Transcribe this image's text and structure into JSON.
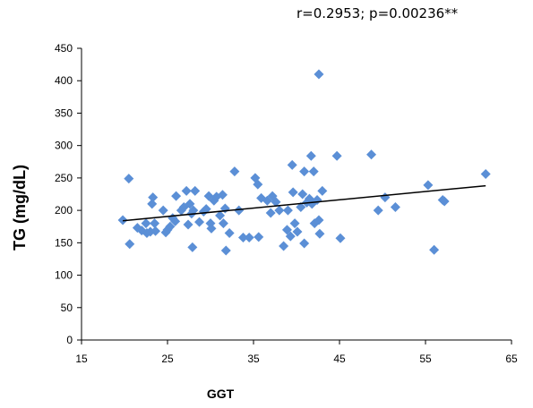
{
  "chart_data": {
    "type": "scatter",
    "annotation": "r=0.2953; p=0.00236**",
    "xlabel": "GGT",
    "ylabel": "TG (mg/dL)",
    "xlim": [
      15,
      65
    ],
    "ylim": [
      0,
      450
    ],
    "x_ticks": [
      "15",
      "25",
      "35",
      "45",
      "55",
      "65"
    ],
    "y_ticks": [
      "0",
      "50",
      "100",
      "150",
      "200",
      "250",
      "300",
      "350",
      "400",
      "450"
    ],
    "grid": false,
    "legend": "none",
    "marker": "diamond",
    "point_color": "#5b8fd6",
    "trendline_color": "#000000",
    "trendline": [
      [
        19.8,
        184
      ],
      [
        62,
        238
      ]
    ],
    "points": [
      [
        19.8,
        185
      ],
      [
        20.5,
        249
      ],
      [
        20.6,
        148
      ],
      [
        21.5,
        173
      ],
      [
        22.0,
        169
      ],
      [
        22.5,
        180
      ],
      [
        22.6,
        165
      ],
      [
        23.0,
        167
      ],
      [
        23.2,
        210
      ],
      [
        23.3,
        220
      ],
      [
        23.5,
        180
      ],
      [
        23.6,
        168
      ],
      [
        24.5,
        200
      ],
      [
        24.8,
        166
      ],
      [
        25.0,
        170
      ],
      [
        25.3,
        175
      ],
      [
        25.6,
        188
      ],
      [
        25.9,
        183
      ],
      [
        26.0,
        222
      ],
      [
        26.6,
        200
      ],
      [
        26.9,
        205
      ],
      [
        27.2,
        230
      ],
      [
        27.4,
        178
      ],
      [
        27.6,
        210
      ],
      [
        27.8,
        195
      ],
      [
        28.0,
        200
      ],
      [
        28.2,
        230
      ],
      [
        27.9,
        143
      ],
      [
        28.7,
        182
      ],
      [
        29.2,
        198
      ],
      [
        29.5,
        202
      ],
      [
        29.8,
        222
      ],
      [
        30.0,
        180
      ],
      [
        30.1,
        172
      ],
      [
        30.4,
        215
      ],
      [
        30.7,
        221
      ],
      [
        31.1,
        192
      ],
      [
        31.4,
        224
      ],
      [
        31.5,
        180
      ],
      [
        31.7,
        203
      ],
      [
        31.8,
        138
      ],
      [
        32.2,
        165
      ],
      [
        32.8,
        260
      ],
      [
        33.3,
        200
      ],
      [
        33.8,
        158
      ],
      [
        34.5,
        158
      ],
      [
        35.2,
        250
      ],
      [
        35.5,
        240
      ],
      [
        35.6,
        159
      ],
      [
        35.9,
        219
      ],
      [
        36.6,
        215
      ],
      [
        37.0,
        196
      ],
      [
        37.2,
        222
      ],
      [
        37.6,
        213
      ],
      [
        38.0,
        200
      ],
      [
        38.5,
        145
      ],
      [
        38.9,
        170
      ],
      [
        39.0,
        200
      ],
      [
        39.3,
        160
      ],
      [
        39.5,
        270
      ],
      [
        39.6,
        228
      ],
      [
        39.8,
        180
      ],
      [
        40.1,
        167
      ],
      [
        40.5,
        205
      ],
      [
        40.7,
        225
      ],
      [
        40.9,
        260
      ],
      [
        40.9,
        149
      ],
      [
        41.2,
        212
      ],
      [
        41.5,
        218
      ],
      [
        41.7,
        284
      ],
      [
        41.8,
        210
      ],
      [
        42.0,
        260
      ],
      [
        42.1,
        180
      ],
      [
        42.4,
        216
      ],
      [
        42.6,
        185
      ],
      [
        42.7,
        164
      ],
      [
        42.6,
        410
      ],
      [
        43.0,
        230
      ],
      [
        44.7,
        284
      ],
      [
        45.1,
        157
      ],
      [
        48.7,
        286
      ],
      [
        49.5,
        200
      ],
      [
        50.3,
        220
      ],
      [
        51.5,
        205
      ],
      [
        55.3,
        239
      ],
      [
        56.0,
        139
      ],
      [
        57.0,
        216
      ],
      [
        57.2,
        214
      ],
      [
        62.0,
        256
      ]
    ]
  }
}
